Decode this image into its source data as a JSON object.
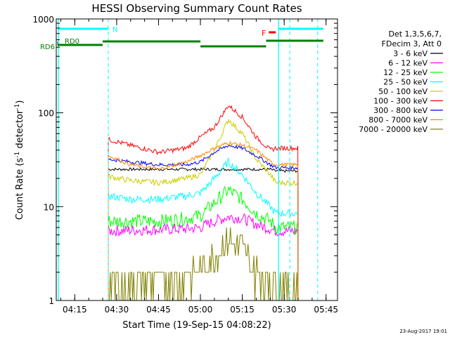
{
  "title": "HESSI Observing Summary Count Rates",
  "ylabel_main": "Count Rate (s",
  "ylabel_sup1": "-1",
  "ylabel_mid": " detector",
  "ylabel_sup2": "-1",
  "ylabel_end": ")",
  "xlabel": "Start Time (19-Sep-15 04:08:22)",
  "footer_date": "23-Aug-2017 19:01",
  "legend": {
    "header1": "Det 1,3,5,6,7,",
    "header2": "FDecim 3, Att 0"
  },
  "markers": {
    "n_label": "N",
    "f_label": "F",
    "rd0_label": "RD0",
    "rd6_label": "RD6"
  },
  "colors": {
    "axis": "#000000",
    "cyan_lines": "#00ffff",
    "rd_bar": "#008000",
    "flare_marker": "#ff0000"
  },
  "chart_data": {
    "type": "line",
    "title": "HESSI Observing Summary Count Rates",
    "xlabel": "Start Time (19-Sep-15 04:08:22)",
    "ylabel": "Count Rate (s^-1 detector^-1)",
    "xlim": [
      "04:08",
      "05:49"
    ],
    "ylim": [
      1,
      1000
    ],
    "yscale": "log",
    "x_ticks": [
      "04:15",
      "04:30",
      "04:45",
      "05:00",
      "05:15",
      "05:30",
      "05:45"
    ],
    "y_ticks": [
      "1",
      "10",
      "100",
      "1000"
    ],
    "legend_position": "right",
    "data_window": [
      "04:23",
      "05:35"
    ],
    "series": [
      {
        "name": "3 - 6 keV",
        "color": "#000000",
        "x": [
          "04:27",
          "04:35",
          "04:45",
          "04:55",
          "05:00",
          "05:05",
          "05:10",
          "05:15",
          "05:20",
          "05:25",
          "05:27",
          "05:35"
        ],
        "y": [
          25,
          25,
          25,
          25,
          25,
          25,
          25,
          25,
          25,
          25,
          24,
          24
        ]
      },
      {
        "name": "6 - 12 keV",
        "color": "#ff00ff",
        "x": [
          "04:27",
          "04:35",
          "04:45",
          "04:55",
          "05:00",
          "05:05",
          "05:10",
          "05:15",
          "05:20",
          "05:25",
          "05:27",
          "05:35"
        ],
        "y": [
          5.5,
          5.6,
          5.7,
          5.8,
          6.0,
          7.0,
          7.8,
          7.5,
          6.5,
          5.8,
          5.5,
          5.5
        ]
      },
      {
        "name": "12 - 25 keV",
        "color": "#00ff00",
        "x": [
          "04:27",
          "04:35",
          "04:45",
          "04:55",
          "05:00",
          "05:05",
          "05:10",
          "05:15",
          "05:20",
          "05:25",
          "05:27",
          "05:35"
        ],
        "y": [
          7.0,
          7.0,
          7.0,
          7.5,
          8.0,
          11,
          15,
          12,
          8.5,
          7.0,
          6.0,
          6.0
        ]
      },
      {
        "name": "25 - 50 keV",
        "color": "#00ffff",
        "x": [
          "04:27",
          "04:35",
          "04:45",
          "04:55",
          "05:00",
          "05:05",
          "05:10",
          "05:15",
          "05:20",
          "05:25",
          "05:27",
          "05:35"
        ],
        "y": [
          13,
          12,
          12,
          13,
          14,
          20,
          30,
          22,
          14,
          10,
          8.5,
          8.5
        ]
      },
      {
        "name": "50 - 100 keV",
        "color": "#cccc00",
        "x": [
          "04:27",
          "04:35",
          "04:45",
          "04:55",
          "05:00",
          "05:05",
          "05:10",
          "05:15",
          "05:20",
          "05:25",
          "05:27",
          "05:35"
        ],
        "y": [
          21,
          19,
          18,
          20,
          22,
          40,
          85,
          60,
          32,
          22,
          18,
          18
        ]
      },
      {
        "name": "100 - 300 keV",
        "color": "#ff0000",
        "x": [
          "04:27",
          "04:35",
          "04:45",
          "04:55",
          "05:00",
          "05:05",
          "05:10",
          "05:15",
          "05:20",
          "05:25",
          "05:27",
          "05:35"
        ],
        "y": [
          52,
          45,
          38,
          42,
          55,
          70,
          120,
          90,
          55,
          40,
          42,
          42
        ]
      },
      {
        "name": "300 - 800 keV",
        "color": "#0000ff",
        "x": [
          "04:27",
          "04:35",
          "04:45",
          "04:55",
          "05:00",
          "05:05",
          "05:10",
          "05:15",
          "05:20",
          "05:25",
          "05:27",
          "05:35"
        ],
        "y": [
          32,
          30,
          28,
          28,
          30,
          38,
          45,
          42,
          35,
          28,
          26,
          26
        ]
      },
      {
        "name": "800 - 7000 keV",
        "color": "#ff8800",
        "x": [
          "04:27",
          "04:35",
          "04:45",
          "04:55",
          "05:00",
          "05:05",
          "05:10",
          "05:15",
          "05:20",
          "05:25",
          "05:27",
          "05:35"
        ],
        "y": [
          35,
          28,
          25,
          30,
          35,
          42,
          48,
          45,
          40,
          30,
          28,
          28
        ]
      },
      {
        "name": "7000 - 20000 keV",
        "color": "#808000",
        "x": [
          "04:27",
          "04:35",
          "04:45",
          "04:55",
          "05:00",
          "05:05",
          "05:10",
          "05:15",
          "05:20",
          "05:25",
          "05:27",
          "05:35"
        ],
        "y": [
          1.5,
          1.6,
          1.7,
          1.8,
          2.0,
          3.0,
          4.5,
          3.5,
          2.0,
          1.6,
          1.5,
          1.5
        ]
      }
    ]
  }
}
